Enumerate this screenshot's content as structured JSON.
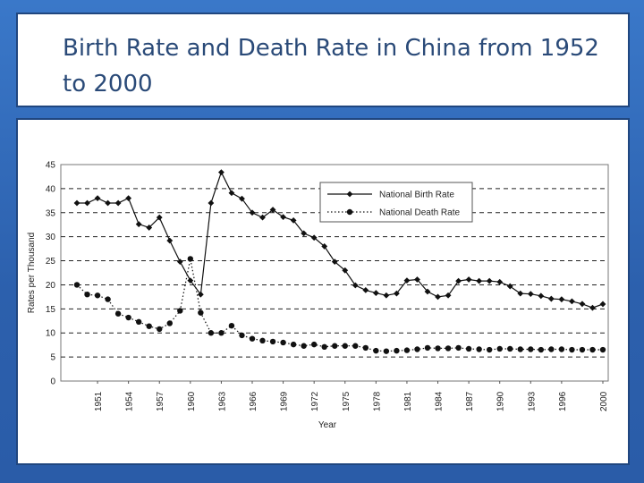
{
  "slide": {
    "title": "Birth Rate and Death Rate in China from 1952 to 2000"
  },
  "colors": {
    "background": "#2f67b8",
    "panel": "#ffffff",
    "title_text": "#2a4a78",
    "series": "#111111"
  },
  "chart_data": {
    "type": "line",
    "xlabel": "Year",
    "ylabel": "Rates per Thousand",
    "ylim": [
      0,
      45
    ],
    "xlim": [
      1949,
      2000
    ],
    "yticks": [
      "0",
      "5",
      "10",
      "15",
      "20",
      "25",
      "30",
      "35",
      "40",
      "45"
    ],
    "xticks": [
      "1951",
      "1954",
      "1957",
      "1960",
      "1963",
      "1966",
      "1969",
      "1972",
      "1975",
      "1978",
      "1981",
      "1984",
      "1987",
      "1990",
      "1993",
      "1996",
      "2000"
    ],
    "grid": "horizontal-dashed",
    "legend_position": "top-right",
    "x": [
      1949,
      1950,
      1951,
      1952,
      1953,
      1954,
      1955,
      1956,
      1957,
      1958,
      1959,
      1960,
      1961,
      1962,
      1963,
      1964,
      1965,
      1966,
      1967,
      1968,
      1969,
      1970,
      1971,
      1972,
      1973,
      1974,
      1975,
      1976,
      1977,
      1978,
      1979,
      1980,
      1981,
      1982,
      1983,
      1984,
      1985,
      1986,
      1987,
      1988,
      1989,
      1990,
      1991,
      1992,
      1993,
      1994,
      1995,
      1996,
      1997,
      1998,
      1999,
      2000
    ],
    "series": [
      {
        "name": "National Birth Rate",
        "marker": "diamond",
        "line": "solid",
        "values": [
          37,
          37,
          38,
          37,
          37,
          38,
          32.6,
          31.9,
          34,
          29.2,
          24.8,
          20.9,
          18,
          37,
          43.4,
          39.1,
          37.9,
          35,
          34,
          35.6,
          34.1,
          33.4,
          30.7,
          29.8,
          28,
          24.8,
          23,
          19.9,
          18.9,
          18.3,
          17.8,
          18.2,
          20.9,
          21.1,
          18.6,
          17.5,
          17.8,
          20.8,
          21.1,
          20.8,
          20.8,
          20.6,
          19.7,
          18.2,
          18.1,
          17.7,
          17.1,
          16.98,
          16.57,
          16.03,
          15.23,
          16
        ]
      },
      {
        "name": "National Death Rate",
        "marker": "circle",
        "line": "dotted",
        "values": [
          20,
          18,
          17.8,
          17,
          14,
          13.2,
          12.3,
          11.4,
          10.8,
          12,
          14.6,
          25.4,
          14.2,
          10,
          10,
          11.5,
          9.5,
          8.8,
          8.4,
          8.2,
          8,
          7.6,
          7.3,
          7.6,
          7.1,
          7.3,
          7.3,
          7.3,
          6.9,
          6.3,
          6.2,
          6.3,
          6.4,
          6.6,
          6.9,
          6.8,
          6.8,
          6.9,
          6.7,
          6.6,
          6.5,
          6.7,
          6.7,
          6.6,
          6.6,
          6.5,
          6.6,
          6.6,
          6.5,
          6.5,
          6.5,
          6.5
        ]
      }
    ]
  }
}
